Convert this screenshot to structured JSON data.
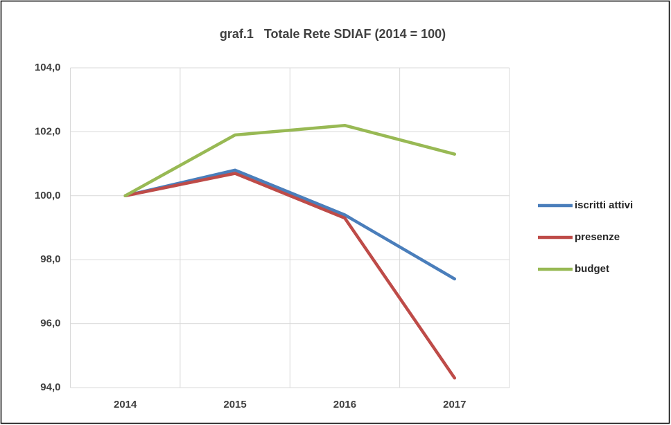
{
  "chart_data": {
    "type": "line",
    "title": "graf.1   Totale Rete SDIAF (2014 = 100)",
    "categories": [
      "2014",
      "2015",
      "2016",
      "2017"
    ],
    "series": [
      {
        "name": "iscritti attivi",
        "color": "#4a7ebb",
        "values": [
          100,
          100.8,
          99.4,
          97.4
        ]
      },
      {
        "name": "presenze",
        "color": "#be4b48",
        "values": [
          100,
          100.7,
          99.3,
          94.3
        ]
      },
      {
        "name": "budget",
        "color": "#98b954",
        "values": [
          100,
          101.9,
          102.2,
          101.3
        ]
      }
    ],
    "ylim": [
      94,
      104
    ],
    "yticks": [
      {
        "value": 94,
        "label": "94,0"
      },
      {
        "value": 96,
        "label": "96,0"
      },
      {
        "value": 98,
        "label": "98,0"
      },
      {
        "value": 100,
        "label": "100,0"
      },
      {
        "value": 102,
        "label": "102,0"
      },
      {
        "value": 104,
        "label": "104,0"
      }
    ],
    "grid": true,
    "legend": "right"
  }
}
